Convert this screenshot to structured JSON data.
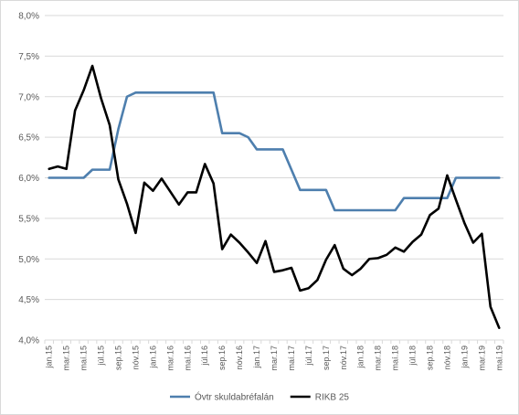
{
  "chart_data": {
    "type": "line",
    "title": "",
    "xlabel": "",
    "ylabel": "",
    "ylim": [
      4.0,
      8.0
    ],
    "yticks": [
      "8,0%",
      "7,5%",
      "7,0%",
      "6,5%",
      "6,0%",
      "5,5%",
      "5,0%",
      "4,5%",
      "4,0%"
    ],
    "ytick_values": [
      8.0,
      7.5,
      7.0,
      6.5,
      6.0,
      5.5,
      5.0,
      4.5,
      4.0
    ],
    "grid": "horizontal",
    "legend": "bottom",
    "x": [
      "jan.15",
      "feb.15",
      "mar.15",
      "apr.15",
      "maí.15",
      "jún.15",
      "júl.15",
      "ágú.15",
      "sep.15",
      "okt.15",
      "nóv.15",
      "des.15",
      "jan.16",
      "feb.16",
      "mar.16",
      "apr.16",
      "maí.16",
      "jún.16",
      "júl.16",
      "ágú.16",
      "sep.16",
      "okt.16",
      "nóv.16",
      "des.16",
      "jan.17",
      "feb.17",
      "mar.17",
      "apr.17",
      "maí.17",
      "jún.17",
      "júl.17",
      "ágú.17",
      "sep.17",
      "okt.17",
      "nóv.17",
      "des.17",
      "jan.18",
      "feb.18",
      "mar.18",
      "apr.18",
      "maí.18",
      "jún.18",
      "júl.18",
      "ágú.18",
      "sep.18",
      "okt.18",
      "nóv.18",
      "des.18",
      "jan.19",
      "feb.19",
      "mar.19",
      "apr.19",
      "maí.19"
    ],
    "x_labels_shown": [
      "jan.15",
      "mar.15",
      "maí.15",
      "júl.15",
      "sep.15",
      "nóv.15",
      "jan.16",
      "mar.16",
      "maí.16",
      "júl.16",
      "sep.16",
      "nóv.16",
      "jan.17",
      "mar.17",
      "maí.17",
      "júl.17",
      "sep.17",
      "nóv.17",
      "jan.18",
      "mar.18",
      "maí.18",
      "júl.18",
      "sep.18",
      "nóv.18",
      "jan.19",
      "mar.19",
      "maí.19"
    ],
    "series": [
      {
        "name": "Óvtr skuldabréfalán",
        "color": "#4e7fae",
        "values": [
          6.0,
          6.0,
          6.0,
          6.0,
          6.0,
          6.1,
          6.1,
          6.1,
          6.6,
          7.0,
          7.05,
          7.05,
          7.05,
          7.05,
          7.05,
          7.05,
          7.05,
          7.05,
          7.05,
          7.05,
          6.55,
          6.55,
          6.55,
          6.5,
          6.35,
          6.35,
          6.35,
          6.35,
          6.1,
          5.85,
          5.85,
          5.85,
          5.85,
          5.6,
          5.6,
          5.6,
          5.6,
          5.6,
          5.6,
          5.6,
          5.6,
          5.75,
          5.75,
          5.75,
          5.75,
          5.75,
          5.75,
          6.0,
          6.0,
          6.0,
          6.0,
          6.0,
          6.0
        ]
      },
      {
        "name": "RIKB 25",
        "color": "#000000",
        "values": [
          6.11,
          6.14,
          6.11,
          6.83,
          7.08,
          7.38,
          6.98,
          6.65,
          5.98,
          5.68,
          5.32,
          5.94,
          5.84,
          5.99,
          5.83,
          5.67,
          5.82,
          5.82,
          6.17,
          5.93,
          5.12,
          5.3,
          5.2,
          5.08,
          4.95,
          5.22,
          4.84,
          4.86,
          4.89,
          4.61,
          4.64,
          4.74,
          4.99,
          5.17,
          4.88,
          4.8,
          4.88,
          5.0,
          5.01,
          5.05,
          5.14,
          5.09,
          5.21,
          5.3,
          5.54,
          5.62,
          6.03,
          5.73,
          5.44,
          5.2,
          5.31,
          4.41,
          4.15
        ]
      }
    ]
  }
}
